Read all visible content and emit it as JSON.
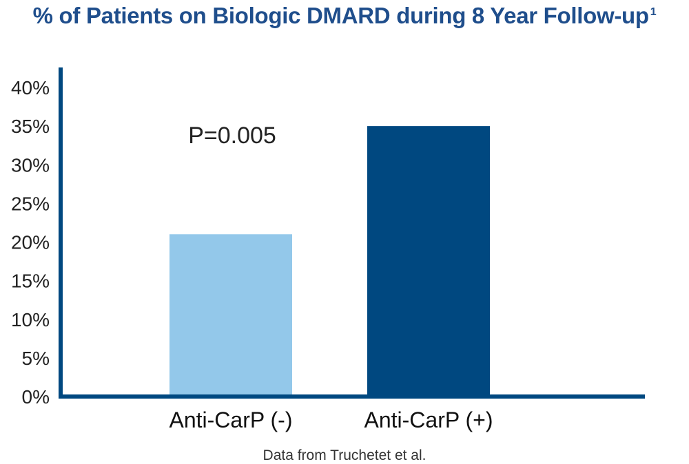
{
  "chart_data": {
    "type": "bar",
    "title": "% of Patients on Biologic DMARD during 8 Year Follow-up",
    "title_footnote": "1",
    "categories": [
      "Anti-CarP (-)",
      "Anti-CarP (+)"
    ],
    "values": [
      21,
      35
    ],
    "bar_colors": [
      "#93c8ea",
      "#004880"
    ],
    "annotation": "P=0.005",
    "yticks": [
      "0%",
      "5%",
      "10%",
      "15%",
      "20%",
      "25%",
      "30%",
      "35%",
      "40%"
    ],
    "ytick_values": [
      0,
      5,
      10,
      15,
      20,
      25,
      30,
      35,
      40
    ],
    "ylim": [
      0,
      40
    ],
    "grid": false,
    "axis_color": "#004880",
    "xlabel": "",
    "ylabel": ""
  },
  "footer": {
    "source": "Data from Truchetet et al."
  }
}
